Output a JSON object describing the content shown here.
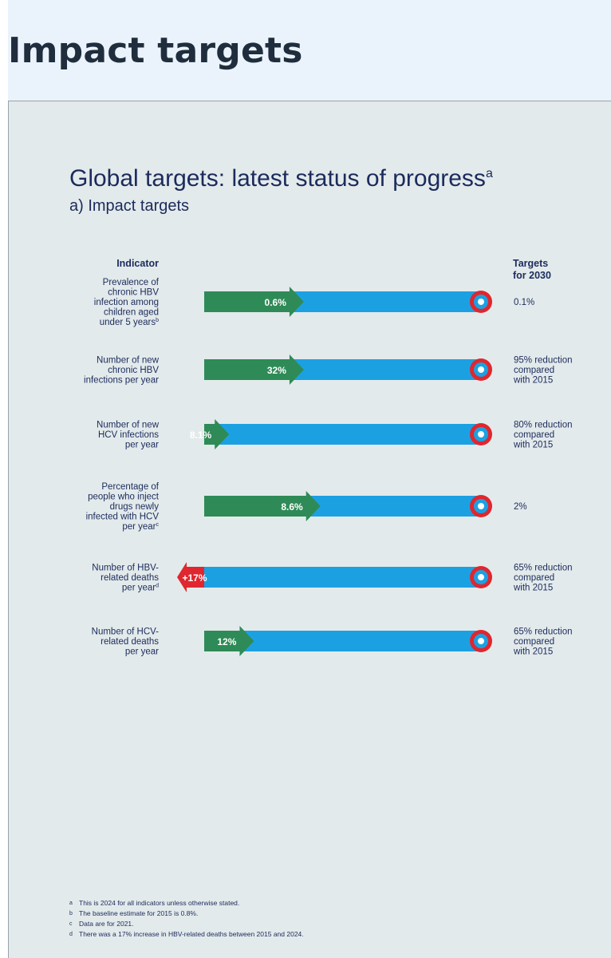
{
  "page": {
    "heading": "Impact targets"
  },
  "chart_data": {
    "type": "bar",
    "title": "Global targets: latest status of progress",
    "title_mark": "a",
    "subtitle": "a) Impact targets",
    "column_headers": {
      "indicator": "Indicator",
      "targets": "Targets for 2030"
    },
    "colors": {
      "progress": "#2e8b57",
      "remaining": "#1ba1e2",
      "reverse": "#e0262e",
      "target_ring": "#e0262e"
    },
    "rows": [
      {
        "indicator": [
          "Prevalence of",
          "chronic HBV",
          "infection among",
          "children aged",
          "under 5 years"
        ],
        "mark": "b",
        "value_label": "0.6%",
        "progress_fraction": 0.36,
        "direction": "forward",
        "target": [
          "0.1%"
        ]
      },
      {
        "indicator": [
          "Number of new",
          "chronic HBV",
          "infections per year"
        ],
        "mark": "",
        "value_label": "32%",
        "progress_fraction": 0.36,
        "direction": "forward",
        "target": [
          "95% reduction",
          "compared",
          "with 2015"
        ]
      },
      {
        "indicator": [
          "Number of new",
          "HCV infections",
          "per year"
        ],
        "mark": "",
        "value_label": "8.1%",
        "progress_fraction": 0.09,
        "direction": "forward",
        "target": [
          "80% reduction",
          "compared",
          "with 2015"
        ]
      },
      {
        "indicator": [
          "Percentage of",
          "people who inject",
          "drugs newly",
          "infected with HCV",
          "per year"
        ],
        "mark": "c",
        "value_label": "8.6%",
        "progress_fraction": 0.42,
        "direction": "forward",
        "target": [
          "2%"
        ]
      },
      {
        "indicator": [
          "Number of HBV-",
          "related deaths",
          "per year"
        ],
        "mark": "d",
        "value_label": "+17%",
        "progress_fraction": 0.0,
        "direction": "reverse",
        "target": [
          "65% reduction",
          "compared",
          "with 2015"
        ]
      },
      {
        "indicator": [
          "Number of HCV-",
          "related deaths",
          "per year"
        ],
        "mark": "",
        "value_label": "12%",
        "progress_fraction": 0.18,
        "direction": "forward",
        "target": [
          "65% reduction",
          "compared",
          "with 2015"
        ]
      }
    ]
  },
  "footnotes": [
    {
      "mark": "a",
      "text": "This is 2024 for all indicators unless otherwise stated."
    },
    {
      "mark": "b",
      "text": "The baseline estimate for 2015 is 0.8%."
    },
    {
      "mark": "c",
      "text": "Data are for 2021."
    },
    {
      "mark": "d",
      "text": "There was a 17% increase in HBV-related deaths between 2015 and 2024."
    }
  ]
}
